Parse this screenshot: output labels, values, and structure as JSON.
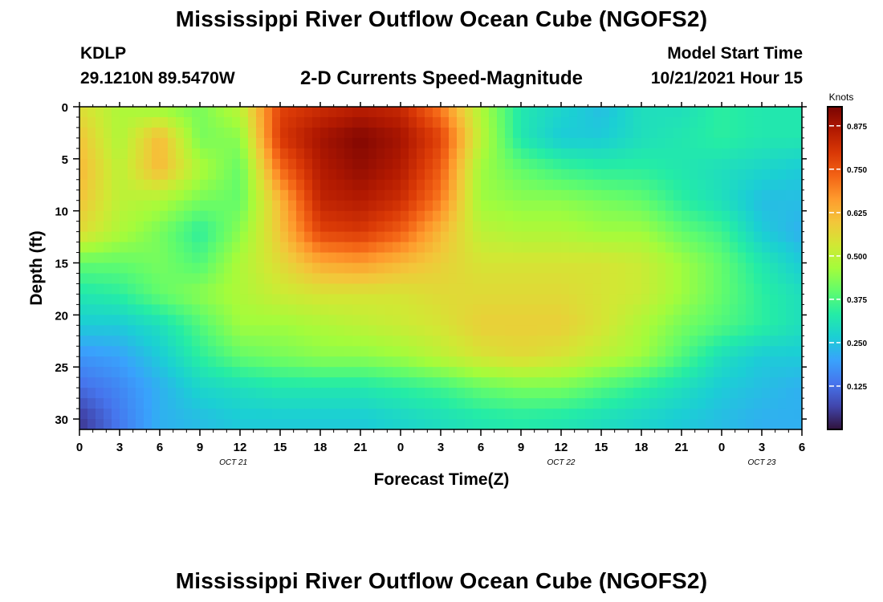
{
  "header": {
    "title": "Mississippi River Outflow Ocean Cube (NGOFS2)",
    "station_id": "KDLP",
    "station_coords": "29.1210N  89.5470W",
    "subtitle": "2-D Currents Speed-Magnitude",
    "model_start_label": "Model Start Time",
    "model_start_value": "10/21/2021 Hour 15"
  },
  "footer": {
    "title": "Mississippi River Outflow Ocean Cube (NGOFS2)"
  },
  "colors": {
    "colormap": [
      "#30123b",
      "#4145ab",
      "#4675ed",
      "#39a2fc",
      "#1bcfd4",
      "#24eca6",
      "#61fc6c",
      "#a4fc3b",
      "#d1e834",
      "#f3c63a",
      "#fe9b2d",
      "#f36315",
      "#d93806",
      "#b11901",
      "#7a0403"
    ]
  },
  "chart_data": {
    "type": "heatmap",
    "xlabel": "Forecast Time(Z)",
    "ylabel": "Depth (ft)",
    "x_ticks": [
      "0",
      "3",
      "6",
      "9",
      "12",
      "15",
      "18",
      "21",
      "0",
      "3",
      "6",
      "9",
      "12",
      "15",
      "18",
      "21",
      "0",
      "3",
      "6"
    ],
    "x_range_hours": [
      0,
      54
    ],
    "date_labels": [
      {
        "text": "OCT 21",
        "hour": 11.5
      },
      {
        "text": "OCT 22",
        "hour": 36
      },
      {
        "text": "OCT 23",
        "hour": 51
      }
    ],
    "y_ticks": [
      0,
      5,
      10,
      15,
      20,
      25,
      30
    ],
    "y_range_ft": [
      0,
      31
    ],
    "colorbar": {
      "label": "Knots",
      "ticks": [
        "0.875",
        "0.750",
        "0.625",
        "0.500",
        "0.375",
        "0.250",
        "0.125"
      ],
      "range": [
        0,
        0.93
      ]
    },
    "grid_hours": [
      0,
      3,
      6,
      9,
      12,
      15,
      18,
      21,
      24,
      27,
      30,
      33,
      36,
      39,
      42,
      45,
      48,
      51,
      54
    ],
    "grid_depths_ft": [
      0,
      3,
      6,
      9,
      12,
      15,
      18,
      21,
      24,
      27,
      30,
      31
    ],
    "values_knots": [
      [
        0.55,
        0.48,
        0.45,
        0.42,
        0.5,
        0.78,
        0.82,
        0.85,
        0.83,
        0.7,
        0.48,
        0.32,
        0.28,
        0.24,
        0.3,
        0.3,
        0.34,
        0.32,
        0.32
      ],
      [
        0.6,
        0.48,
        0.62,
        0.42,
        0.44,
        0.8,
        0.88,
        0.92,
        0.88,
        0.78,
        0.5,
        0.32,
        0.26,
        0.26,
        0.3,
        0.32,
        0.34,
        0.32,
        0.32
      ],
      [
        0.62,
        0.5,
        0.62,
        0.48,
        0.4,
        0.72,
        0.86,
        0.9,
        0.86,
        0.74,
        0.46,
        0.4,
        0.36,
        0.34,
        0.34,
        0.32,
        0.3,
        0.28,
        0.26
      ],
      [
        0.6,
        0.5,
        0.48,
        0.42,
        0.4,
        0.62,
        0.84,
        0.86,
        0.82,
        0.7,
        0.46,
        0.44,
        0.44,
        0.42,
        0.4,
        0.34,
        0.3,
        0.24,
        0.24
      ],
      [
        0.56,
        0.48,
        0.42,
        0.34,
        0.44,
        0.6,
        0.78,
        0.8,
        0.74,
        0.62,
        0.5,
        0.48,
        0.48,
        0.46,
        0.46,
        0.4,
        0.36,
        0.26,
        0.22
      ],
      [
        0.4,
        0.4,
        0.42,
        0.38,
        0.48,
        0.56,
        0.64,
        0.66,
        0.62,
        0.58,
        0.54,
        0.54,
        0.54,
        0.54,
        0.52,
        0.46,
        0.4,
        0.32,
        0.26
      ],
      [
        0.32,
        0.34,
        0.4,
        0.44,
        0.48,
        0.52,
        0.54,
        0.54,
        0.54,
        0.56,
        0.56,
        0.56,
        0.56,
        0.54,
        0.52,
        0.46,
        0.4,
        0.34,
        0.3
      ],
      [
        0.26,
        0.26,
        0.3,
        0.38,
        0.46,
        0.46,
        0.48,
        0.5,
        0.52,
        0.54,
        0.58,
        0.58,
        0.58,
        0.54,
        0.48,
        0.42,
        0.38,
        0.34,
        0.3
      ],
      [
        0.18,
        0.2,
        0.26,
        0.34,
        0.4,
        0.42,
        0.44,
        0.44,
        0.46,
        0.5,
        0.54,
        0.56,
        0.54,
        0.5,
        0.46,
        0.38,
        0.3,
        0.26,
        0.26
      ],
      [
        0.12,
        0.16,
        0.22,
        0.28,
        0.3,
        0.32,
        0.32,
        0.32,
        0.34,
        0.36,
        0.4,
        0.42,
        0.42,
        0.38,
        0.34,
        0.3,
        0.26,
        0.24,
        0.22
      ],
      [
        0.05,
        0.14,
        0.22,
        0.24,
        0.26,
        0.26,
        0.26,
        0.26,
        0.28,
        0.3,
        0.32,
        0.33,
        0.32,
        0.3,
        0.28,
        0.26,
        0.24,
        0.22,
        0.22
      ],
      [
        0.05,
        0.14,
        0.22,
        0.24,
        0.26,
        0.26,
        0.26,
        0.26,
        0.28,
        0.3,
        0.32,
        0.33,
        0.32,
        0.3,
        0.28,
        0.26,
        0.24,
        0.22,
        0.22
      ]
    ]
  }
}
